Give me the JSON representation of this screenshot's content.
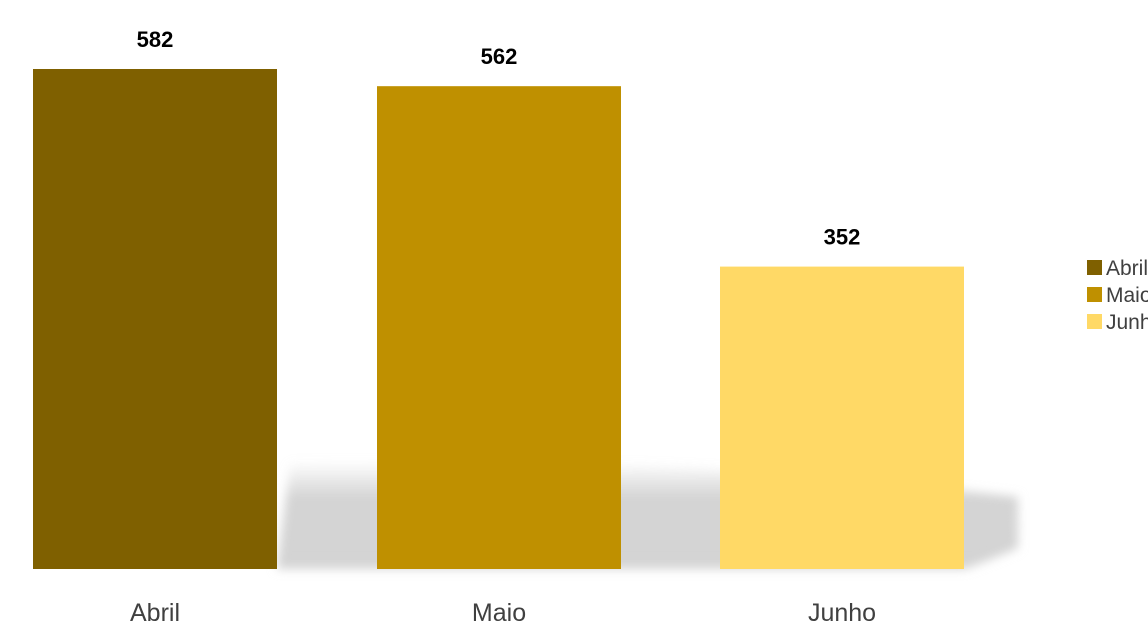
{
  "chart_data": {
    "type": "bar",
    "categories": [
      "Abril",
      "Maio",
      "Junho"
    ],
    "values": [
      582,
      562,
      352
    ],
    "data_labels": [
      "582",
      "562",
      "352"
    ],
    "colors": [
      "#7f6000",
      "#bf9000",
      "#ffd966"
    ],
    "legend": {
      "placement": "right",
      "entries": [
        "Abril",
        "Maio",
        "Junho"
      ]
    },
    "ylim": [
      0,
      582
    ],
    "grid": false,
    "title": "",
    "xlabel": "",
    "ylabel": ""
  }
}
